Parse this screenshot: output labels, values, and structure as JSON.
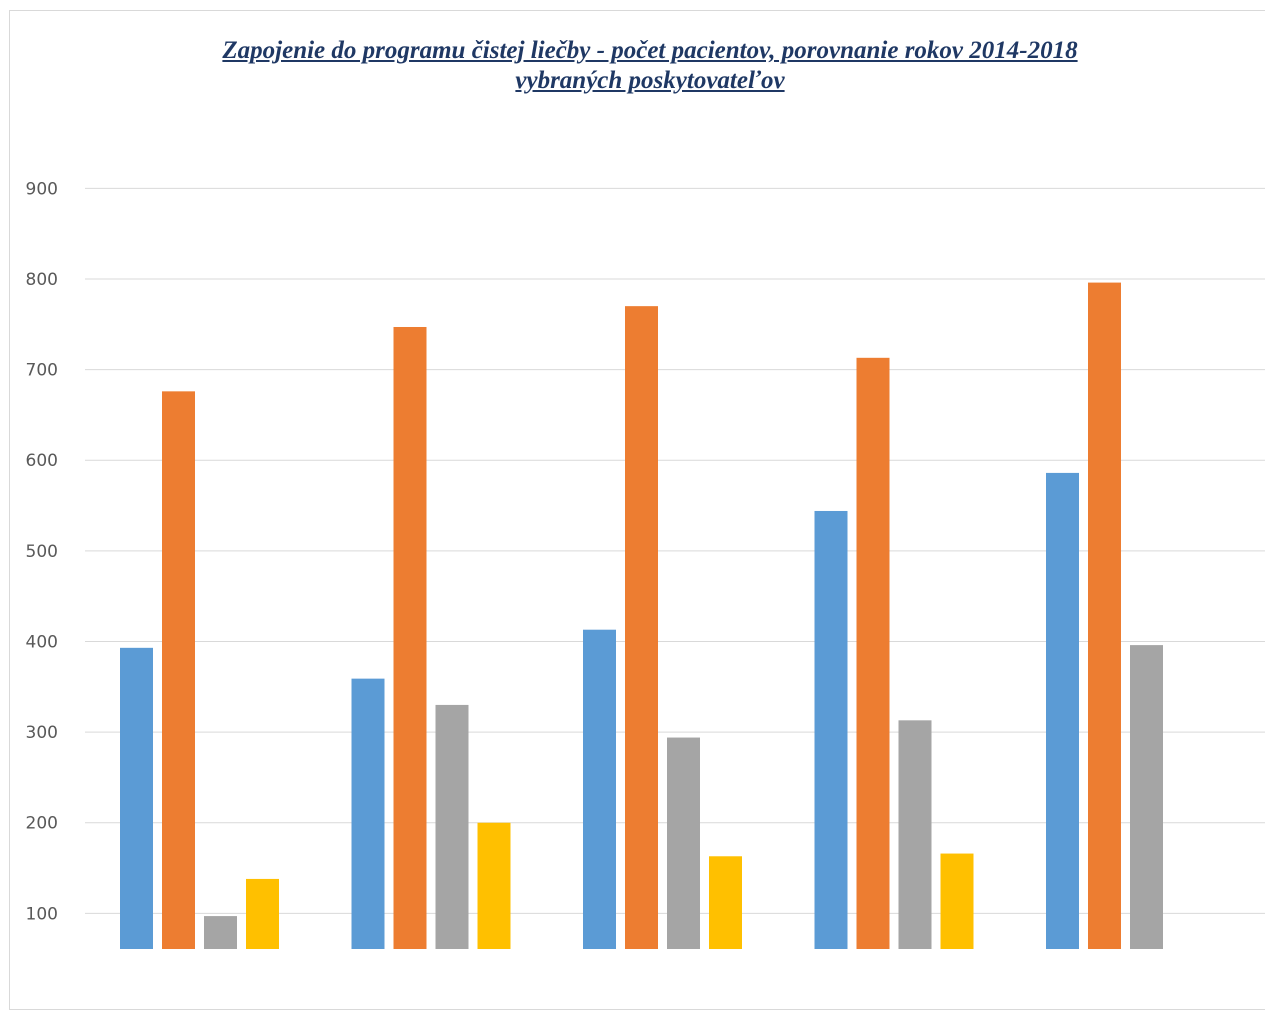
{
  "chart_data": {
    "type": "bar",
    "title_lines": [
      "Zapojenie do programu čistej liečby - počet pacientov, porovnanie rokov 2014-2018",
      "vybraných poskytovateľov"
    ],
    "categories": [
      "",
      "",
      "",
      "",
      ""
    ],
    "series": [
      {
        "color": "#5b9bd5",
        "values": [
          393,
          359,
          413,
          544,
          586
        ]
      },
      {
        "color": "#ed7d31",
        "values": [
          676,
          747,
          770,
          713,
          796
        ]
      },
      {
        "color": "#a5a5a5",
        "values": [
          97,
          330,
          294,
          313,
          396
        ]
      },
      {
        "color": "#ffc000",
        "values": [
          138,
          200,
          163,
          166,
          0
        ]
      }
    ],
    "yticks": [
      100,
      200,
      300,
      400,
      500,
      600,
      700,
      800,
      900
    ],
    "xlabel": "",
    "ylabel": "",
    "grid": true
  }
}
